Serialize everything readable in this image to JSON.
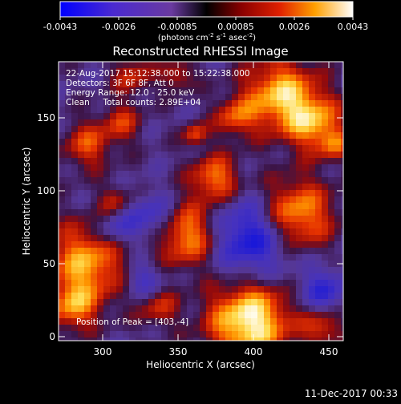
{
  "colorbar": {
    "tick_labels": [
      "-0.0043",
      "-0.0026",
      "-0.00085",
      "0.00085",
      "0.0026",
      "0.0043"
    ],
    "unit_label_main": "(photons cm",
    "unit_sup1": "-2",
    "unit_mid": " s",
    "unit_sup2": "-1",
    "unit_mid2": " asec",
    "unit_sup3": "-2",
    "unit_close": ")"
  },
  "image": {
    "title": "Reconstructed RHESSI Image",
    "info_lines": [
      "22-Aug-2017 15:12:38.000 to 15:22:38.000",
      "Detectors: 3F 6F 8F, Att 0",
      "Energy Range: 12.0 - 25.0 keV",
      "Clean     Total counts: 2.89E+04"
    ],
    "peak_label": "Position of Peak = [403,-4]",
    "xlabel": "Heliocentric X (arcsec)",
    "ylabel": "Heliocentric Y (arcsec)",
    "x_ticks": [
      "300",
      "350",
      "400",
      "450"
    ],
    "y_ticks": [
      "0",
      "50",
      "100",
      "150"
    ]
  },
  "footer": {
    "date": "11-Dec-2017 00:33"
  },
  "colors": {
    "low": "#0000ff",
    "mid": "#000000",
    "high": "#ffffff"
  }
}
